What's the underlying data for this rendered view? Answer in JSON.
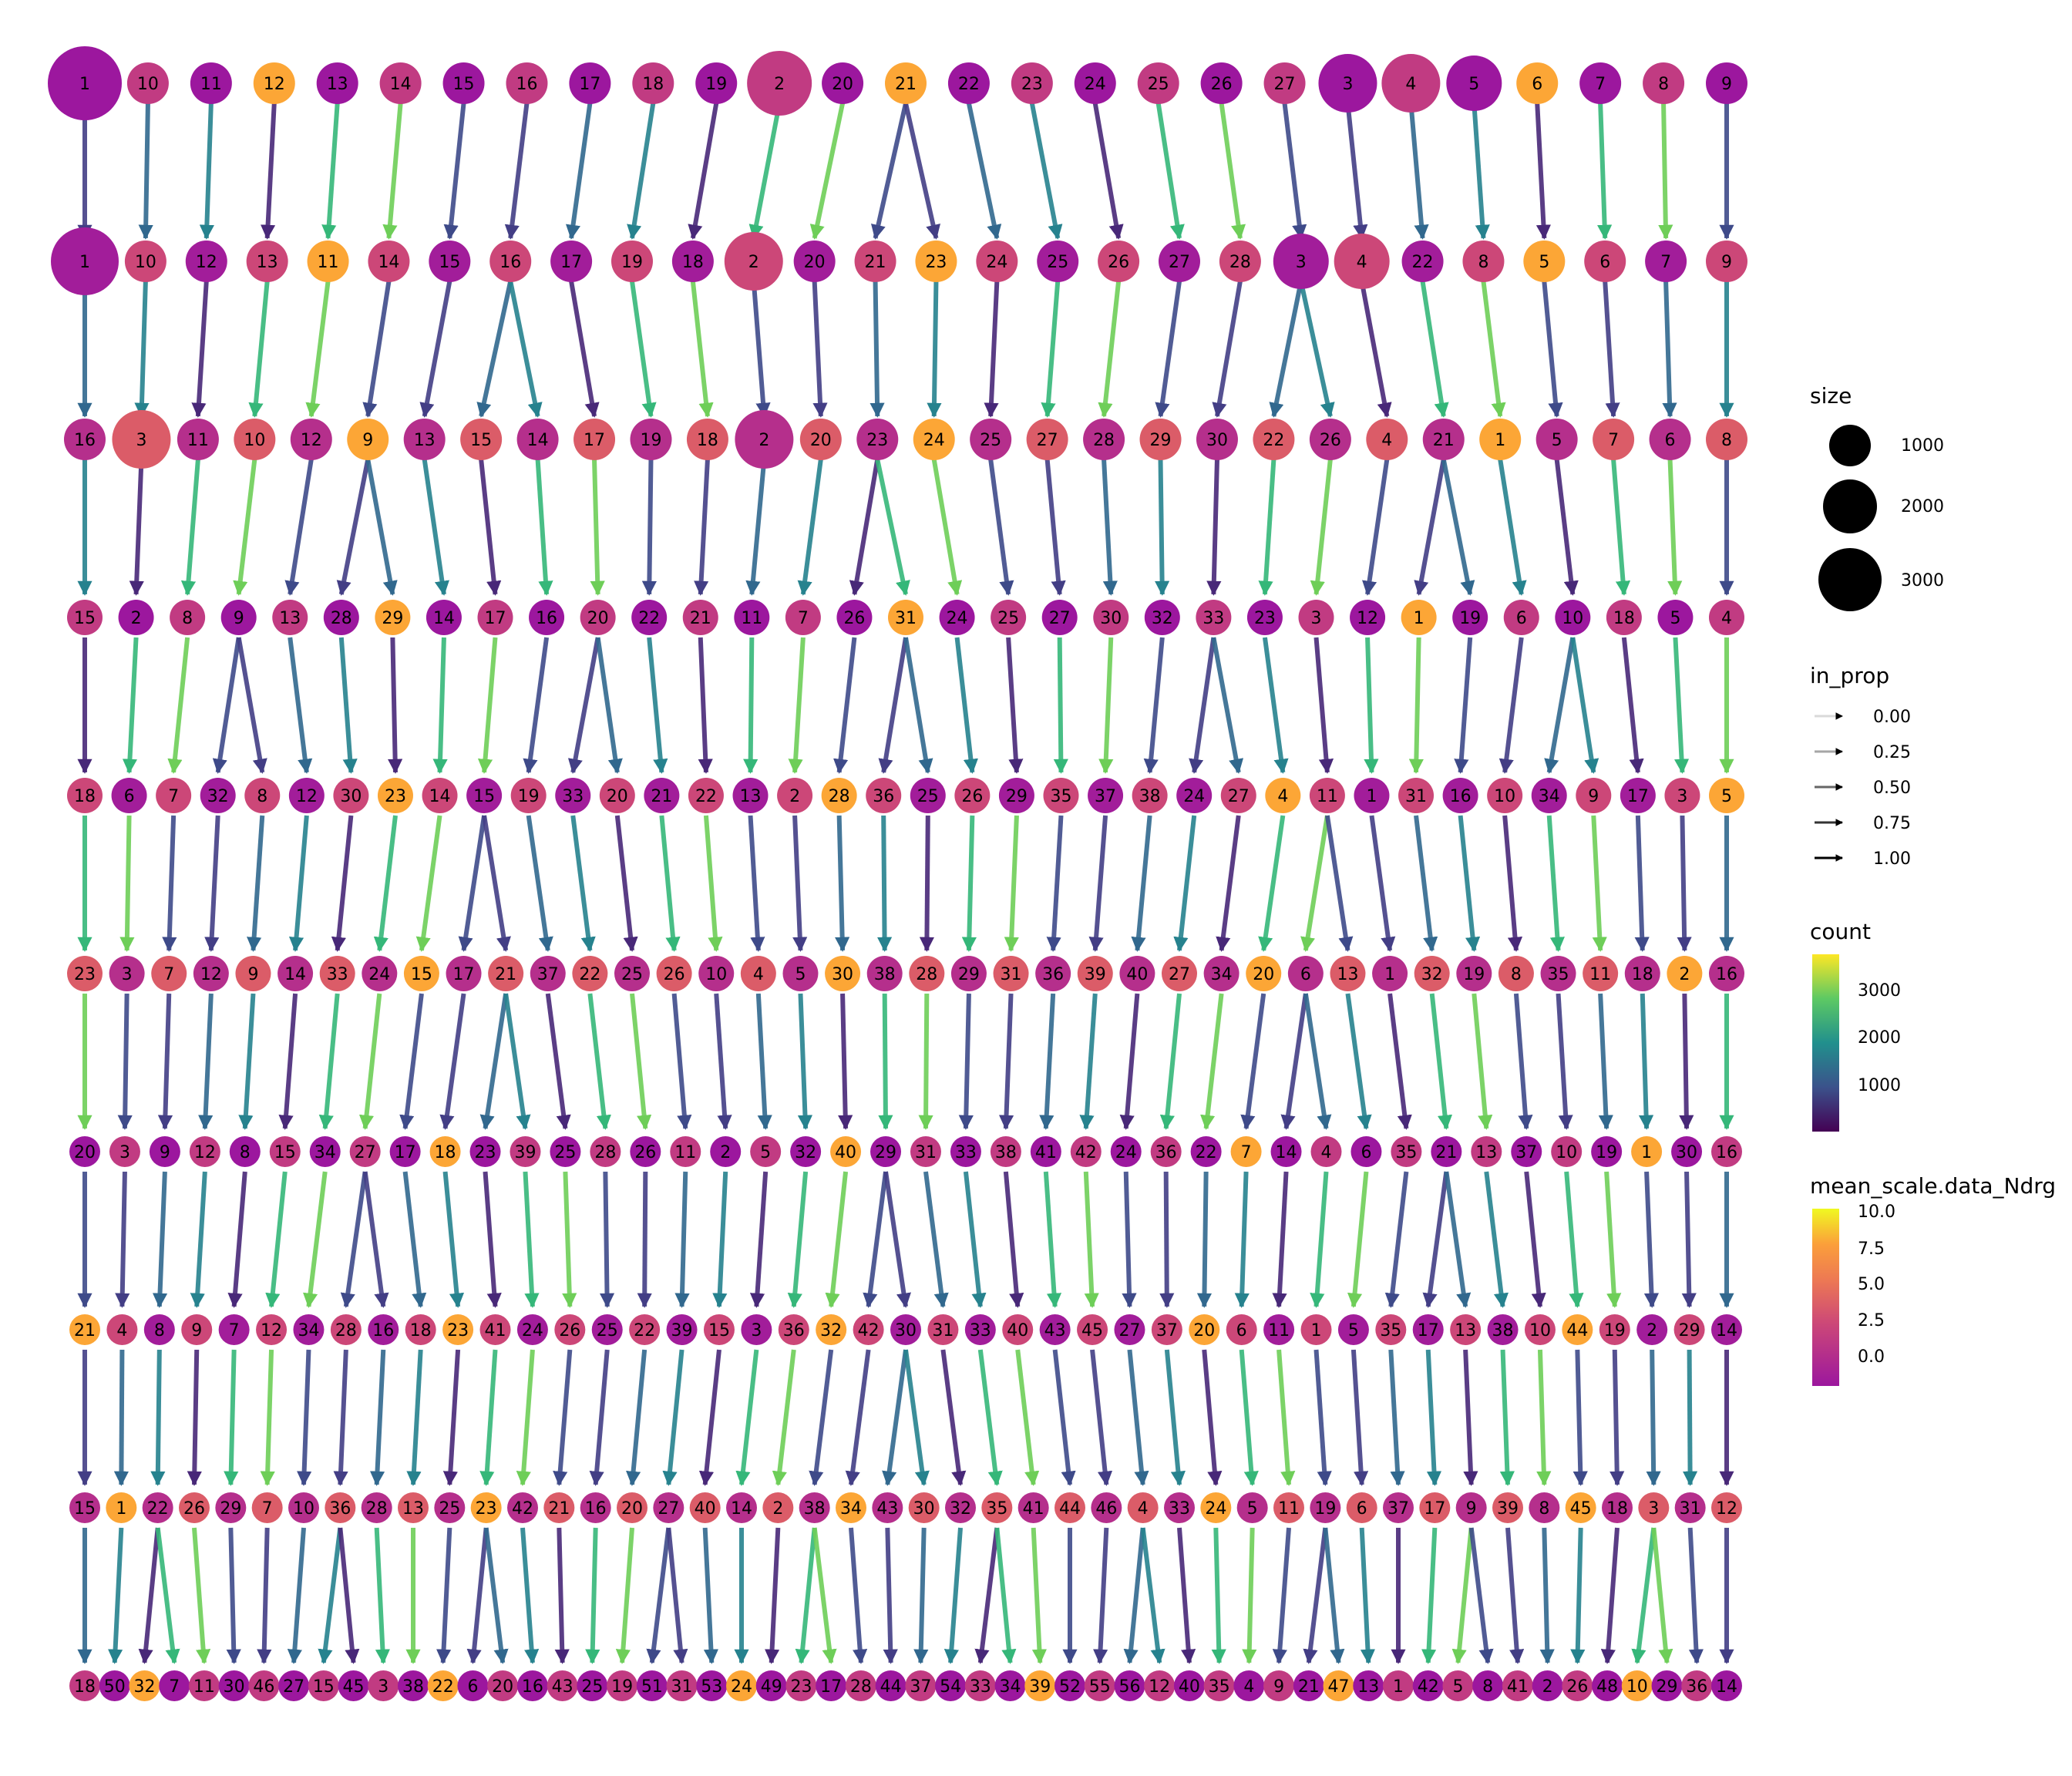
{
  "chart_data": {
    "type": "clustering-tree",
    "resolutions": 10,
    "levels": [
      [
        "1",
        "10",
        "11",
        "12",
        "13",
        "14",
        "15",
        "16",
        "17",
        "18",
        "19",
        "2",
        "20",
        "21",
        "22",
        "23",
        "24",
        "25",
        "26",
        "27",
        "3",
        "4",
        "5",
        "6",
        "7",
        "8",
        "9"
      ],
      [
        "1",
        "10",
        "12",
        "13",
        "11",
        "14",
        "15",
        "16",
        "17",
        "19",
        "18",
        "2",
        "20",
        "21",
        "23",
        "24",
        "25",
        "26",
        "27",
        "28",
        "3",
        "4",
        "22",
        "8",
        "5",
        "6",
        "7",
        "9"
      ],
      [
        "16",
        "3",
        "11",
        "10",
        "12",
        "9",
        "13",
        "15",
        "14",
        "17",
        "19",
        "18",
        "2",
        "20",
        "23",
        "24",
        "25",
        "27",
        "28",
        "29",
        "30",
        "22",
        "26",
        "4",
        "21",
        "1",
        "5",
        "7",
        "6",
        "8"
      ],
      [
        "15",
        "2",
        "8",
        "9",
        "13",
        "28",
        "29",
        "14",
        "17",
        "16",
        "20",
        "22",
        "21",
        "11",
        "7",
        "26",
        "31",
        "24",
        "25",
        "27",
        "30",
        "32",
        "33",
        "23",
        "3",
        "12",
        "1",
        "19",
        "6",
        "10",
        "18",
        "5",
        "4"
      ],
      [
        "18",
        "6",
        "7",
        "32",
        "8",
        "12",
        "30",
        "23",
        "14",
        "15",
        "19",
        "33",
        "20",
        "21",
        "22",
        "13",
        "2",
        "28",
        "36",
        "25",
        "26",
        "29",
        "35",
        "37",
        "38",
        "24",
        "27",
        "4",
        "11",
        "1",
        "31",
        "16",
        "10",
        "34",
        "9",
        "17",
        "3",
        "5"
      ],
      [
        "23",
        "3",
        "7",
        "12",
        "9",
        "14",
        "33",
        "24",
        "15",
        "17",
        "21",
        "37",
        "22",
        "25",
        "26",
        "10",
        "4",
        "5",
        "30",
        "38",
        "28",
        "29",
        "31",
        "36",
        "39",
        "40",
        "27",
        "34",
        "20",
        "6",
        "13",
        "1",
        "32",
        "19",
        "8",
        "35",
        "11",
        "18",
        "2",
        "16"
      ],
      [
        "20",
        "3",
        "9",
        "12",
        "8",
        "15",
        "34",
        "27",
        "17",
        "18",
        "23",
        "39",
        "25",
        "28",
        "26",
        "11",
        "2",
        "5",
        "32",
        "40",
        "29",
        "31",
        "33",
        "38",
        "41",
        "42",
        "24",
        "36",
        "22",
        "7",
        "14",
        "4",
        "6",
        "35",
        "21",
        "13",
        "37",
        "10",
        "19",
        "1",
        "30",
        "16"
      ],
      [
        "21",
        "4",
        "8",
        "9",
        "7",
        "12",
        "34",
        "28",
        "16",
        "18",
        "23",
        "41",
        "24",
        "26",
        "25",
        "22",
        "39",
        "15",
        "3",
        "36",
        "32",
        "42",
        "30",
        "31",
        "33",
        "40",
        "43",
        "45",
        "27",
        "37",
        "20",
        "6",
        "11",
        "1",
        "5",
        "35",
        "17",
        "13",
        "38",
        "10",
        "44",
        "19",
        "2",
        "29",
        "14"
      ],
      [
        "15",
        "1",
        "22",
        "26",
        "29",
        "7",
        "10",
        "36",
        "28",
        "13",
        "25",
        "23",
        "42",
        "21",
        "16",
        "20",
        "27",
        "40",
        "14",
        "2",
        "38",
        "34",
        "43",
        "30",
        "32",
        "35",
        "41",
        "44",
        "46",
        "4",
        "33",
        "24",
        "5",
        "11",
        "19",
        "6",
        "37",
        "17",
        "9",
        "39",
        "8",
        "45",
        "18",
        "3",
        "31",
        "12"
      ],
      [
        "18",
        "50",
        "32",
        "7",
        "11",
        "30",
        "46",
        "27",
        "15",
        "45",
        "3",
        "38",
        "22",
        "6",
        "20",
        "16",
        "43",
        "25",
        "19",
        "51",
        "31",
        "53",
        "24",
        "49",
        "23",
        "17",
        "28",
        "44",
        "37",
        "54",
        "33",
        "34",
        "39",
        "52",
        "55",
        "56",
        "12",
        "40",
        "35",
        "4",
        "9",
        "21",
        "47",
        "13",
        "1",
        "42",
        "5",
        "8",
        "41",
        "2",
        "26",
        "48",
        "10",
        "29",
        "36",
        "14"
      ]
    ],
    "legend": {
      "size": {
        "title": "size",
        "values": [
          1000,
          2000,
          3000
        ]
      },
      "in_prop": {
        "title": "in_prop",
        "values": [
          "0.00",
          "0.25",
          "0.50",
          "0.75",
          "1.00"
        ]
      },
      "count": {
        "title": "count",
        "ticks": [
          1000,
          2000,
          3000
        ],
        "colors": [
          "#440154",
          "#3b528b",
          "#21908d",
          "#5dc963",
          "#fde725"
        ]
      },
      "mean_scale": {
        "title": "mean_scale.data_Ndrg",
        "ticks": [
          "10.0",
          "7.5",
          "5.0",
          "2.5",
          "0.0"
        ],
        "colors": [
          "#0d0887",
          "#9c179e",
          "#ed7953",
          "#fb9f3a",
          "#f0f921"
        ]
      }
    }
  }
}
